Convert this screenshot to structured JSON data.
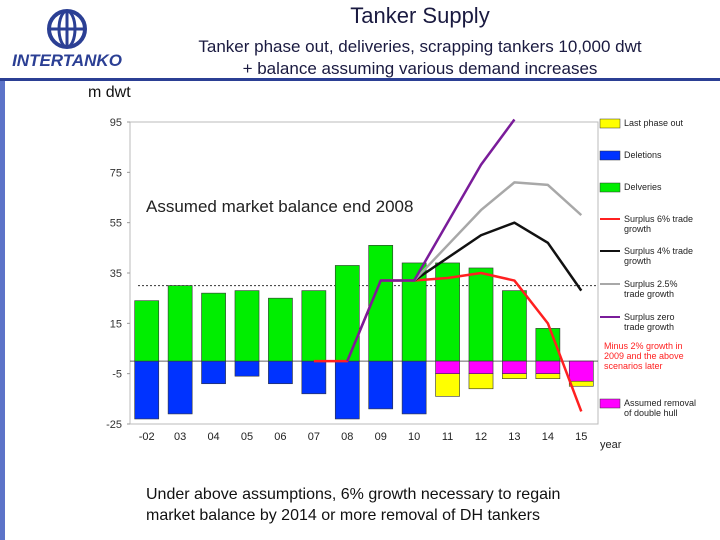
{
  "header": {
    "logo_text": "INTERTANKO",
    "title": "Tanker Supply",
    "subtitle_line1": "Tanker phase out, deliveries, scrapping tankers 10,000 dwt",
    "subtitle_line2": "+ balance assuming various demand increases"
  },
  "colors": {
    "brand": "#2b3f94",
    "phase_out": "#ffff00",
    "deletions": "#0033ff",
    "deliveries": "#00ee00",
    "double_hull": "#ff00ff",
    "surplus_6": "#ff2020",
    "surplus_4": "#111111",
    "surplus_25": "#a8a8a8",
    "surplus_0": "#7a1c9a"
  },
  "chart_data": {
    "type": "bar",
    "unit_label": "m dwt",
    "ylim": [
      -25,
      95
    ],
    "yticks": [
      "95",
      "75",
      "55",
      "35",
      "15",
      "-5",
      "-25"
    ],
    "categories": [
      "-02",
      "03",
      "04",
      "05",
      "06",
      "07",
      "08",
      "09",
      "10",
      "11",
      "12",
      "13",
      "14",
      "15"
    ],
    "xlabel": "year",
    "annotation": "Assumed market balance end 2008",
    "bars": [
      {
        "name": "Last phase out",
        "color": "#ffff00",
        "values": [
          null,
          null,
          null,
          null,
          null,
          null,
          null,
          null,
          null,
          -9,
          -6,
          -2,
          -2,
          -2
        ]
      },
      {
        "name": "Deletions",
        "color": "#0033ff",
        "values": [
          -23,
          -21,
          -9,
          -6,
          -9,
          -13,
          -23,
          -19,
          -21,
          null,
          null,
          null,
          null,
          null
        ]
      },
      {
        "name": "Deliveries",
        "color": "#00ee00",
        "values": [
          24,
          30,
          27,
          28,
          25,
          28,
          38,
          46,
          39,
          39,
          37,
          28,
          13,
          null
        ]
      },
      {
        "name": "Assumed removal of double hull",
        "color": "#ff00ff",
        "values": [
          null,
          null,
          null,
          null,
          null,
          null,
          null,
          null,
          null,
          -5,
          -5,
          -5,
          -5,
          -8
        ]
      }
    ],
    "lines": [
      {
        "name": "Surplus 6% trade growth",
        "color": "#ff2020",
        "values": [
          null,
          null,
          null,
          null,
          null,
          0,
          0,
          32,
          32,
          33,
          35,
          32,
          15,
          -20
        ]
      },
      {
        "name": "Surplus 4% trade growth",
        "color": "#111111",
        "values": [
          null,
          null,
          null,
          null,
          null,
          null,
          null,
          null,
          32,
          41,
          50,
          55,
          47,
          28
        ]
      },
      {
        "name": "Surplus 2.5% trade growth",
        "color": "#a8a8a8",
        "values": [
          null,
          null,
          null,
          null,
          null,
          null,
          null,
          null,
          32,
          46,
          60,
          71,
          70,
          58
        ]
      },
      {
        "name": "Surplus zero trade growth",
        "color": "#7a1c9a",
        "values": [
          null,
          null,
          null,
          null,
          null,
          null,
          0,
          32,
          32,
          55,
          78,
          96,
          null,
          null
        ]
      }
    ],
    "legend": [
      {
        "label": "Last phase out",
        "kind": "box",
        "color": "#ffff00"
      },
      {
        "label": "Deletions",
        "kind": "box",
        "color": "#0033ff"
      },
      {
        "label": "Delveries",
        "kind": "box",
        "color": "#00ee00"
      },
      {
        "label": "Surplus 6% trade growth",
        "kind": "line",
        "color": "#ff2020"
      },
      {
        "label": "Surplus 4% trade growth",
        "kind": "line",
        "color": "#111111"
      },
      {
        "label": "Surplus 2.5% trade growth",
        "kind": "line",
        "color": "#a8a8a8"
      },
      {
        "label": "Surplus zero trade growth",
        "kind": "line",
        "color": "#7a1c9a"
      },
      {
        "label": "Minus 2% growth in 2009 and the above scenarios later",
        "kind": "note",
        "color": "#ff2020"
      },
      {
        "label": "Assumed removal of double hull",
        "kind": "box",
        "color": "#ff00ff"
      }
    ],
    "legend_placement": "right",
    "grid": false
  },
  "caption": {
    "line1": "Under above assumptions, 6% growth necessary to regain",
    "line2": "market balance by 2014 or more removal of DH tankers"
  }
}
